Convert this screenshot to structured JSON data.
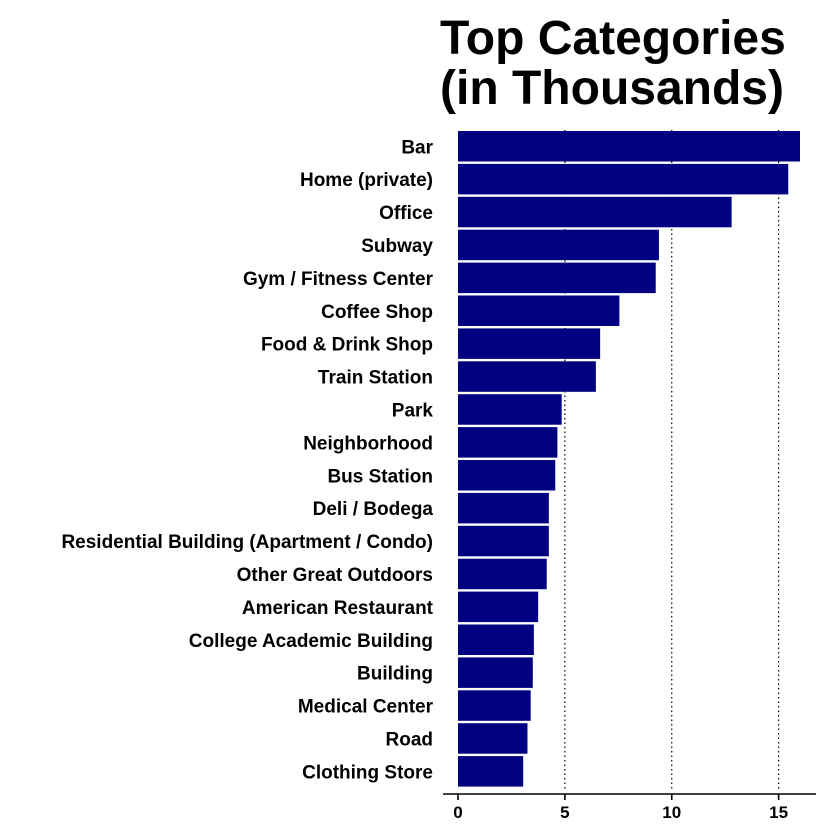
{
  "chart_data": {
    "type": "bar",
    "orientation": "horizontal",
    "title_lines": [
      "Top Categories",
      "(in Thousands)"
    ],
    "xlabel": "",
    "ylabel": "",
    "xlim": [
      0,
      16
    ],
    "x_ticks": [
      0,
      5,
      10,
      15
    ],
    "grid": "vertical dotted",
    "bar_color": "#000080",
    "categories": [
      "Bar",
      "Home (private)",
      "Office",
      "Subway",
      "Gym / Fitness Center",
      "Coffee Shop",
      "Food & Drink Shop",
      "Train Station",
      "Park",
      "Neighborhood",
      "Bus Station",
      "Deli / Bodega",
      "Residential Building (Apartment / Condo)",
      "Other Great Outdoors",
      "American Restaurant",
      "College Academic Building",
      "Building",
      "Medical Center",
      "Road",
      "Clothing Store"
    ],
    "values": [
      16.0,
      15.45,
      12.8,
      9.4,
      9.25,
      7.55,
      6.65,
      6.45,
      4.85,
      4.65,
      4.55,
      4.25,
      4.25,
      4.15,
      3.75,
      3.55,
      3.5,
      3.4,
      3.25,
      3.05
    ]
  }
}
